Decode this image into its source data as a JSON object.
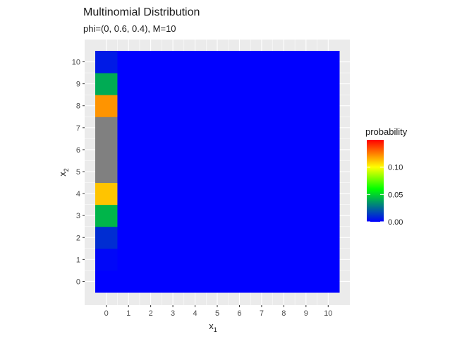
{
  "chart_data": {
    "type": "heatmap",
    "title": "Multinomial Distribution",
    "subtitle": "phi=(0, 0.6, 0.4), M=10",
    "xlabel": "x",
    "xlabel_subscript": "1",
    "ylabel": "x",
    "ylabel_subscript": "2",
    "x_ticks": [
      0,
      1,
      2,
      3,
      4,
      5,
      6,
      7,
      8,
      9,
      10
    ],
    "y_ticks": [
      0,
      1,
      2,
      3,
      4,
      5,
      6,
      7,
      8,
      9,
      10
    ],
    "xlim": [
      -0.5,
      10.5
    ],
    "ylim": [
      -0.5,
      10.5
    ],
    "grid": true,
    "background_color": "#ebebeb",
    "fill_color_default": "#0000ff",
    "cells": [
      {
        "x": 0,
        "y": 0,
        "probability": 0.0001
      },
      {
        "x": 0,
        "y": 1,
        "probability": 0.0016
      },
      {
        "x": 0,
        "y": 2,
        "probability": 0.0106
      },
      {
        "x": 0,
        "y": 3,
        "probability": 0.0425
      },
      {
        "x": 0,
        "y": 4,
        "probability": 0.1115
      },
      {
        "x": 0,
        "y": 5,
        "probability": 0.2007
      },
      {
        "x": 0,
        "y": 6,
        "probability": 0.2508
      },
      {
        "x": 0,
        "y": 7,
        "probability": 0.215
      },
      {
        "x": 0,
        "y": 8,
        "probability": 0.1209
      },
      {
        "x": 0,
        "y": 9,
        "probability": 0.0403
      },
      {
        "x": 0,
        "y": 10,
        "probability": 0.006
      }
    ],
    "legend": {
      "title": "probability",
      "position": "right",
      "breaks": [
        0.0,
        0.05,
        0.1
      ],
      "break_labels": [
        "0.00",
        "0.05",
        "0.10"
      ],
      "limits": [
        0,
        0.15
      ],
      "na_color": "#808080",
      "gradient_stops": [
        {
          "value": 0.0,
          "color": "#0000ff"
        },
        {
          "value": 0.06,
          "color": "#00ff00"
        },
        {
          "value": 0.1,
          "color": "#ffff00"
        },
        {
          "value": 0.15,
          "color": "#ff0000"
        }
      ]
    }
  }
}
